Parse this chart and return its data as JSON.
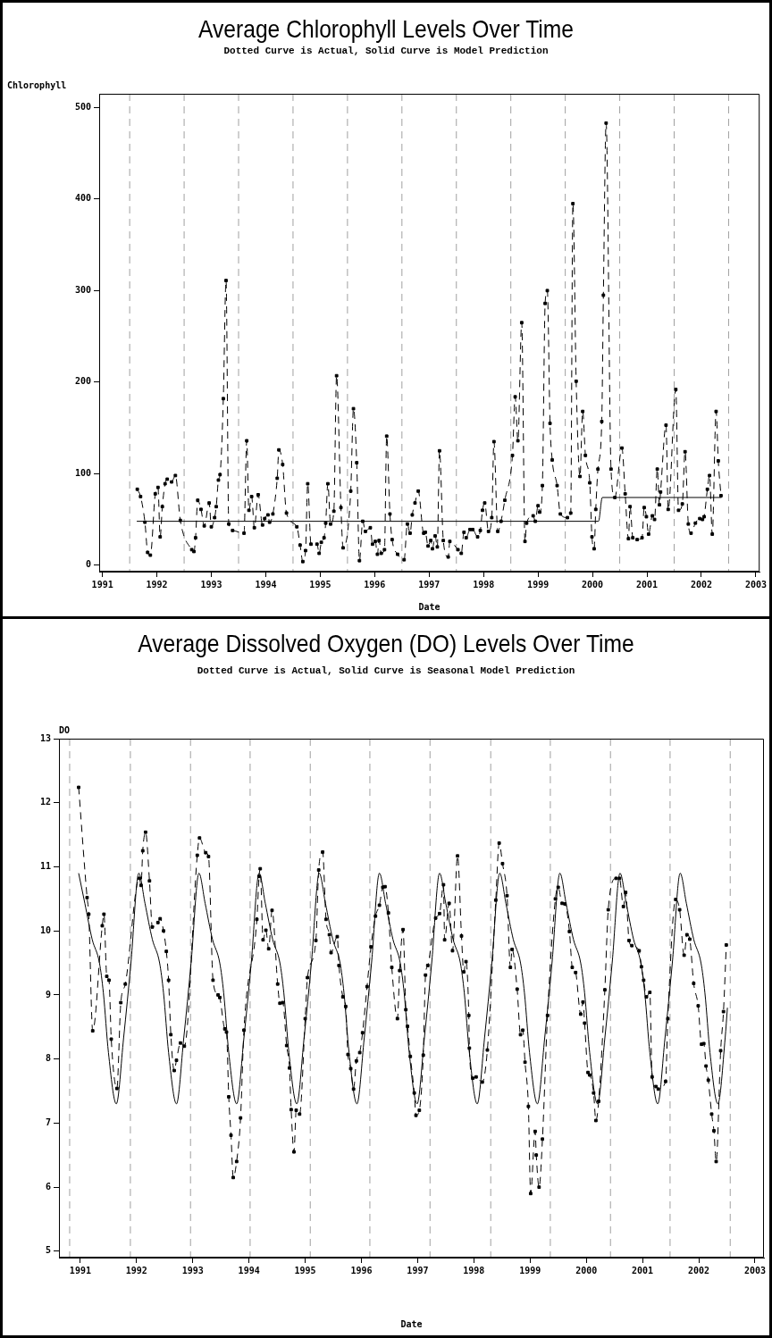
{
  "chart_data": [
    {
      "type": "line",
      "title": "Average Chlorophyll Levels Over Time",
      "subtitle": "Dotted Curve is Actual, Solid Curve is Model Prediction",
      "xlabel": "Date",
      "ylabel": "Chlorophyll",
      "xlim": [
        1990.94,
        2003.07
      ],
      "xticks": [
        1991,
        1992,
        1993,
        1994,
        1995,
        1996,
        1997,
        1998,
        1999,
        2000,
        2001,
        2002,
        2003
      ],
      "ylim": [
        -7,
        515
      ],
      "yticks": [
        0,
        100,
        200,
        300,
        400,
        500
      ],
      "ref_lines": [
        {
          "axis": "x",
          "value": 1991.5,
          "color": "#a0a0a0",
          "line_style": "dashed"
        },
        {
          "axis": "x",
          "value": 1992.5,
          "color": "#a0a0a0",
          "line_style": "dashed"
        },
        {
          "axis": "x",
          "value": 1993.5,
          "color": "#a0a0a0",
          "line_style": "dashed"
        },
        {
          "axis": "x",
          "value": 1994.5,
          "color": "#a0a0a0",
          "line_style": "dashed"
        },
        {
          "axis": "x",
          "value": 1995.5,
          "color": "#a0a0a0",
          "line_style": "dashed"
        },
        {
          "axis": "x",
          "value": 1996.5,
          "color": "#a0a0a0",
          "line_style": "dashed"
        },
        {
          "axis": "x",
          "value": 1997.5,
          "color": "#a0a0a0",
          "line_style": "dashed"
        },
        {
          "axis": "x",
          "value": 1998.5,
          "color": "#a0a0a0",
          "line_style": "dashed"
        },
        {
          "axis": "x",
          "value": 1999.5,
          "color": "#a0a0a0",
          "line_style": "dashed"
        },
        {
          "axis": "x",
          "value": 2000.5,
          "color": "#a0a0a0",
          "line_style": "dashed"
        },
        {
          "axis": "x",
          "value": 2001.5,
          "color": "#a0a0a0",
          "line_style": "dashed"
        },
        {
          "axis": "x",
          "value": 2002.5,
          "color": "#a0a0a0",
          "line_style": "dashed"
        }
      ],
      "series": [
        {
          "color": "#000000",
          "line_style": "dashed",
          "marker": "square",
          "x": [
            1991.64,
            1991.7,
            1991.78,
            1991.83,
            1991.88,
            1991.97,
            1992.02,
            1992.06,
            1992.1,
            1992.15,
            1992.19,
            1992.27,
            1992.34,
            1992.43,
            1992.64,
            1992.68,
            1992.71,
            1992.75,
            1992.81,
            1992.87,
            1992.96,
            1993.0,
            1993.06,
            1993.09,
            1993.13,
            1993.16,
            1993.22,
            1993.27,
            1993.32,
            1993.39,
            1993.6,
            1993.65,
            1993.69,
            1993.74,
            1993.79,
            1993.86,
            1993.94,
            1993.98,
            1994.04,
            1994.07,
            1994.13,
            1994.21,
            1994.24,
            1994.31,
            1994.38,
            1994.57,
            1994.63,
            1994.68,
            1994.73,
            1994.77,
            1994.83,
            1994.94,
            1994.98,
            1995.02,
            1995.07,
            1995.1,
            1995.14,
            1995.19,
            1995.25,
            1995.3,
            1995.38,
            1995.42,
            1995.56,
            1995.61,
            1995.67,
            1995.72,
            1995.78,
            1995.83,
            1995.92,
            1995.96,
            1996.01,
            1996.05,
            1996.08,
            1996.12,
            1996.18,
            1996.22,
            1996.28,
            1996.32,
            1996.42,
            1996.54,
            1996.6,
            1996.65,
            1996.69,
            1996.74,
            1996.8,
            1996.9,
            1996.93,
            1996.98,
            1997.03,
            1997.06,
            1997.11,
            1997.15,
            1997.19,
            1997.26,
            1997.35,
            1997.38,
            1997.53,
            1997.59,
            1997.64,
            1997.68,
            1997.75,
            1997.8,
            1997.89,
            1997.94,
            1997.98,
            1998.02,
            1998.09,
            1998.15,
            1998.19,
            1998.26,
            1998.32,
            1998.39,
            1998.53,
            1998.58,
            1998.63,
            1998.7,
            1998.76,
            1998.79,
            1998.91,
            1998.95,
            1999.0,
            1999.03,
            1999.08,
            1999.13,
            1999.17,
            1999.22,
            1999.26,
            1999.35,
            1999.41,
            1999.54,
            1999.6,
            1999.64,
            1999.7,
            1999.77,
            1999.82,
            1999.87,
            1999.95,
            1999.99,
            2000.03,
            2000.06,
            2000.1,
            2000.17,
            2000.2,
            2000.25,
            2000.34,
            2000.41,
            2000.54,
            2000.6,
            2000.66,
            2000.69,
            2000.74,
            2000.82,
            2000.91,
            2000.95,
            2000.99,
            2001.03,
            2001.1,
            2001.14,
            2001.19,
            2001.23,
            2001.25,
            2001.35,
            2001.39,
            2001.53,
            2001.58,
            2001.65,
            2001.7,
            2001.76,
            2001.81,
            2001.89,
            2001.97,
            2002.02,
            2002.05,
            2002.11,
            2002.15,
            2002.2,
            2002.27,
            2002.31,
            2002.36
          ],
          "values": [
            83,
            75,
            47,
            14,
            11,
            78,
            85,
            31,
            64,
            89,
            94,
            91,
            98,
            49,
            17,
            15,
            30,
            71,
            61,
            43,
            68,
            42,
            52,
            64,
            93,
            99,
            182,
            311,
            45,
            38,
            35,
            136,
            60,
            75,
            41,
            77,
            44,
            51,
            55,
            47,
            56,
            95,
            126,
            110,
            57,
            42,
            22,
            4,
            16,
            89,
            23,
            23,
            13,
            25,
            30,
            46,
            89,
            45,
            59,
            207,
            63,
            19,
            81,
            171,
            112,
            5,
            48,
            37,
            41,
            23,
            26,
            12,
            27,
            13,
            17,
            141,
            56,
            28,
            12,
            6,
            45,
            35,
            55,
            68,
            81,
            35,
            36,
            21,
            27,
            18,
            32,
            20,
            125,
            27,
            9,
            26,
            17,
            13,
            36,
            30,
            39,
            39,
            31,
            38,
            60,
            68,
            37,
            52,
            135,
            37,
            48,
            71,
            120,
            184,
            136,
            265,
            26,
            46,
            54,
            48,
            65,
            58,
            87,
            286,
            300,
            155,
            115,
            87,
            56,
            52,
            57,
            395,
            201,
            97,
            168,
            120,
            90,
            31,
            18,
            61,
            105,
            157,
            295,
            483,
            105,
            74,
            128,
            78,
            29,
            64,
            30,
            28,
            30,
            63,
            53,
            34,
            54,
            50,
            105,
            66,
            80,
            153,
            61,
            192,
            60,
            67,
            124,
            45,
            35,
            46,
            51,
            50,
            53,
            83,
            98,
            34,
            168,
            114,
            76
          ]
        },
        {
          "color": "#000000",
          "line_style": "solid",
          "marker": "none",
          "x": [
            1991.63,
            2000.11,
            2000.18,
            2002.37
          ],
          "values": [
            48,
            48,
            74,
            74
          ]
        }
      ]
    },
    {
      "type": "line",
      "title": "Average Dissolved Oxygen (DO) Levels Over Time",
      "subtitle": "Dotted Curve is Actual, Solid Curve is Seasonal Model Prediction",
      "xlabel": "Date",
      "ylabel": "DO",
      "xlim": [
        1990.62,
        2003.16
      ],
      "xticks": [
        1991,
        1992,
        1993,
        1994,
        1995,
        1996,
        1997,
        1998,
        1999,
        2000,
        2001,
        2002,
        2003
      ],
      "ylim": [
        4.9,
        13
      ],
      "yticks": [
        5,
        6,
        7,
        8,
        9,
        10,
        11,
        12,
        13
      ],
      "ref_lines": [
        {
          "axis": "x",
          "value": 1990.81,
          "color": "#a0a0a0",
          "line_style": "dashed"
        },
        {
          "axis": "x",
          "value": 1991.89,
          "color": "#a0a0a0",
          "line_style": "dashed"
        },
        {
          "axis": "x",
          "value": 1992.96,
          "color": "#a0a0a0",
          "line_style": "dashed"
        },
        {
          "axis": "x",
          "value": 1994.02,
          "color": "#a0a0a0",
          "line_style": "dashed"
        },
        {
          "axis": "x",
          "value": 1995.09,
          "color": "#a0a0a0",
          "line_style": "dashed"
        },
        {
          "axis": "x",
          "value": 1996.15,
          "color": "#a0a0a0",
          "line_style": "dashed"
        },
        {
          "axis": "x",
          "value": 1997.22,
          "color": "#a0a0a0",
          "line_style": "dashed"
        },
        {
          "axis": "x",
          "value": 1998.3,
          "color": "#a0a0a0",
          "line_style": "dashed"
        },
        {
          "axis": "x",
          "value": 1999.36,
          "color": "#a0a0a0",
          "line_style": "dashed"
        },
        {
          "axis": "x",
          "value": 2000.43,
          "color": "#a0a0a0",
          "line_style": "dashed"
        },
        {
          "axis": "x",
          "value": 2001.49,
          "color": "#a0a0a0",
          "line_style": "dashed"
        },
        {
          "axis": "x",
          "value": 2002.56,
          "color": "#a0a0a0",
          "line_style": "dashed"
        }
      ],
      "series": [
        {
          "color": "#000000",
          "line_style": "dashed",
          "marker": "square",
          "x": [
            1990.97,
            1991.12,
            1991.15,
            1991.22,
            1991.39,
            1991.42,
            1991.47,
            1991.51,
            1991.55,
            1991.65,
            1991.72,
            1991.8,
            1992.05,
            1992.08,
            1992.11,
            1992.16,
            1992.23,
            1992.28,
            1992.38,
            1992.42,
            1992.48,
            1992.53,
            1992.57,
            1992.61,
            1992.67,
            1992.71,
            1992.78,
            1992.85,
            1993.08,
            1993.12,
            1993.23,
            1993.28,
            1993.36,
            1993.45,
            1993.48,
            1993.57,
            1993.6,
            1993.64,
            1993.68,
            1993.72,
            1993.78,
            1993.85,
            1993.91,
            1994.14,
            1994.18,
            1994.2,
            1994.25,
            1994.3,
            1994.35,
            1994.41,
            1994.51,
            1994.55,
            1994.6,
            1994.67,
            1994.72,
            1994.75,
            1994.8,
            1994.84,
            1994.9,
            1995.0,
            1995.04,
            1995.19,
            1995.24,
            1995.31,
            1995.37,
            1995.43,
            1995.46,
            1995.57,
            1995.6,
            1995.67,
            1995.72,
            1995.76,
            1995.81,
            1995.86,
            1995.91,
            1995.97,
            1996.02,
            1996.1,
            1996.17,
            1996.25,
            1996.32,
            1996.38,
            1996.42,
            1996.48,
            1996.54,
            1996.64,
            1996.68,
            1996.74,
            1996.79,
            1996.82,
            1996.87,
            1996.94,
            1996.97,
            1997.03,
            1997.1,
            1997.14,
            1997.18,
            1997.32,
            1997.39,
            1997.46,
            1997.48,
            1997.56,
            1997.62,
            1997.71,
            1997.78,
            1997.82,
            1997.86,
            1997.91,
            1997.92,
            1997.98,
            1998.04,
            1998.15,
            1998.24,
            1998.39,
            1998.45,
            1998.51,
            1998.59,
            1998.65,
            1998.68,
            1998.77,
            1998.83,
            1998.87,
            1998.91,
            1998.97,
            1999.01,
            1999.09,
            1999.11,
            1999.16,
            1999.22,
            1999.31,
            1999.45,
            1999.5,
            1999.57,
            1999.62,
            1999.7,
            1999.75,
            1999.81,
            1999.9,
            1999.94,
            1999.97,
            2000.03,
            2000.06,
            2000.13,
            2000.17,
            2000.22,
            2000.33,
            2000.39,
            2000.53,
            2000.59,
            2000.66,
            2000.7,
            2000.76,
            2000.81,
            2000.94,
            2000.98,
            2001.02,
            2001.07,
            2001.13,
            2001.17,
            2001.24,
            2001.28,
            2001.41,
            2001.45,
            2001.59,
            2001.66,
            2001.74,
            2001.79,
            2001.84,
            2001.91,
            2001.99,
            2002.05,
            2002.09,
            2002.13,
            2002.17,
            2002.23,
            2002.27,
            2002.31,
            2002.39,
            2002.44,
            2002.49
          ],
          "values": [
            12.24,
            10.52,
            10.26,
            8.44,
            10.08,
            10.26,
            9.29,
            9.23,
            8.31,
            7.54,
            8.88,
            9.17,
            10.82,
            10.71,
            11.25,
            11.54,
            10.78,
            10.06,
            10.13,
            10.19,
            10.0,
            9.68,
            9.23,
            8.38,
            7.82,
            7.98,
            8.25,
            8.2,
            11.18,
            11.45,
            11.22,
            11.16,
            9.23,
            9.0,
            8.96,
            8.47,
            8.42,
            7.41,
            6.81,
            6.15,
            6.4,
            7.08,
            8.45,
            10.18,
            10.85,
            10.97,
            9.86,
            10.01,
            9.72,
            10.32,
            9.17,
            8.87,
            8.88,
            8.21,
            7.86,
            7.21,
            6.55,
            7.2,
            7.14,
            8.63,
            9.27,
            9.85,
            10.95,
            11.23,
            10.18,
            9.94,
            9.66,
            9.91,
            9.46,
            8.97,
            8.82,
            8.07,
            7.85,
            7.53,
            7.97,
            8.1,
            8.41,
            9.13,
            9.75,
            10.23,
            10.4,
            10.68,
            10.69,
            10.28,
            9.43,
            8.63,
            9.38,
            10.02,
            8.77,
            8.51,
            8.04,
            7.47,
            7.12,
            7.2,
            8.06,
            9.31,
            9.46,
            10.2,
            10.27,
            10.72,
            9.86,
            10.43,
            9.69,
            11.17,
            9.92,
            9.36,
            9.52,
            8.68,
            8.17,
            7.7,
            7.72,
            7.64,
            8.14,
            10.48,
            11.37,
            11.05,
            10.55,
            9.43,
            9.71,
            9.09,
            8.38,
            8.45,
            7.95,
            7.26,
            5.9,
            6.87,
            6.5,
            6.0,
            6.75,
            8.68,
            10.5,
            10.68,
            10.43,
            10.42,
            9.99,
            9.43,
            9.35,
            8.7,
            8.89,
            8.56,
            7.79,
            7.75,
            7.47,
            7.04,
            7.34,
            9.08,
            10.33,
            10.82,
            10.82,
            10.38,
            10.6,
            9.85,
            9.77,
            9.69,
            9.44,
            9.23,
            8.97,
            9.04,
            7.72,
            7.57,
            7.53,
            7.65,
            8.63,
            10.49,
            10.33,
            9.62,
            9.94,
            9.87,
            9.18,
            8.83,
            8.23,
            8.24,
            7.89,
            7.67,
            7.14,
            6.88,
            6.4,
            8.13,
            8.74,
            9.78
          ]
        },
        {
          "color": "#000000",
          "line_style": "solid",
          "marker": "none",
          "x": [
            1990.97,
            1991.08,
            1991.21,
            1991.34,
            1991.41,
            1991.5,
            1991.64,
            1991.77,
            1991.9,
            1992.04,
            1992.15,
            1992.28,
            1992.41,
            1992.48,
            1992.57,
            1992.71,
            1992.84,
            1992.97,
            1993.11,
            1993.22,
            1993.35,
            1993.48,
            1993.55,
            1993.64,
            1993.78,
            1993.91,
            1994.04,
            1994.18,
            1994.29,
            1994.42,
            1994.55,
            1994.62,
            1994.71,
            1994.85,
            1994.98,
            1995.11,
            1995.25,
            1995.36,
            1995.49,
            1995.62,
            1995.69,
            1995.78,
            1995.92,
            1996.05,
            1996.18,
            1996.32,
            1996.43,
            1996.56,
            1996.69,
            1996.76,
            1996.85,
            1996.99,
            1997.12,
            1997.25,
            1997.39,
            1997.5,
            1997.63,
            1997.76,
            1997.83,
            1997.92,
            1998.06,
            1998.19,
            1998.32,
            1998.46,
            1998.57,
            1998.7,
            1998.83,
            1998.9,
            1998.99,
            1999.13,
            1999.26,
            1999.39,
            1999.53,
            1999.64,
            1999.77,
            1999.9,
            1999.97,
            2000.06,
            2000.2,
            2000.33,
            2000.46,
            2000.6,
            2000.71,
            2000.84,
            2000.97,
            2001.04,
            2001.13,
            2001.27,
            2001.4,
            2001.53,
            2001.67,
            2001.78,
            2001.91,
            2002.04,
            2002.11,
            2002.2,
            2002.34,
            2002.47,
            2002.51
          ],
          "values": [
            10.9,
            10.43,
            9.87,
            9.5,
            9.03,
            8.1,
            7.3,
            8.33,
            9.5,
            10.9,
            10.43,
            9.87,
            9.5,
            9.03,
            8.1,
            7.3,
            8.33,
            9.5,
            10.9,
            10.43,
            9.87,
            9.5,
            9.03,
            8.1,
            7.3,
            8.33,
            9.5,
            10.9,
            10.43,
            9.87,
            9.5,
            9.03,
            8.1,
            7.3,
            8.33,
            9.5,
            10.9,
            10.43,
            9.87,
            9.5,
            9.03,
            8.1,
            7.3,
            8.33,
            9.5,
            10.9,
            10.43,
            9.87,
            9.5,
            9.03,
            8.1,
            7.3,
            8.33,
            9.5,
            10.9,
            10.43,
            9.87,
            9.5,
            9.03,
            8.1,
            7.3,
            8.33,
            9.5,
            10.9,
            10.43,
            9.87,
            9.5,
            9.03,
            8.1,
            7.3,
            8.33,
            9.5,
            10.9,
            10.43,
            9.87,
            9.5,
            9.03,
            8.1,
            7.3,
            8.33,
            9.5,
            10.9,
            10.43,
            9.87,
            9.5,
            9.03,
            8.1,
            7.3,
            8.33,
            9.5,
            10.9,
            10.43,
            9.87,
            9.5,
            9.03,
            8.1,
            7.3,
            8.33,
            8.8
          ]
        }
      ]
    }
  ]
}
